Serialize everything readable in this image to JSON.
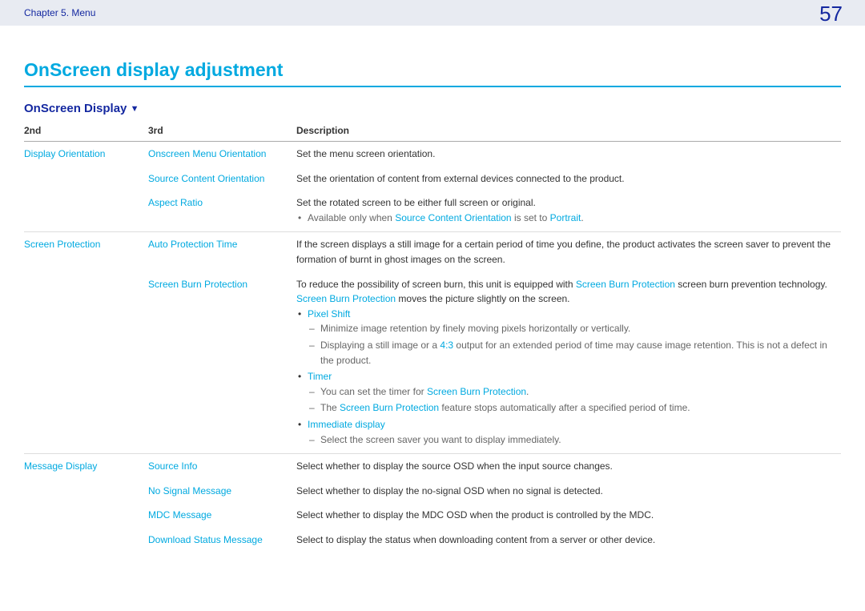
{
  "header": {
    "chapter": "Chapter 5. Menu",
    "page": "57"
  },
  "title": "OnScreen display adjustment",
  "section": "OnScreen Display",
  "columns": {
    "c2": "2nd",
    "c3": "3rd",
    "desc": "Description"
  },
  "rows": {
    "r1": {
      "second": "Display Orientation",
      "third": "Onscreen Menu Orientation",
      "desc": "Set the menu screen orientation."
    },
    "r2": {
      "third": "Source Content Orientation",
      "desc": "Set the orientation of content from external devices connected to the product."
    },
    "r3": {
      "third": "Aspect Ratio",
      "desc": "Set the rotated screen to be either full screen or original.",
      "note_pre": "Available only when ",
      "note_link1": "Source Content Orientation",
      "note_mid": " is set to ",
      "note_link2": "Portrait",
      "note_post": "."
    },
    "r4": {
      "second": "Screen Protection",
      "third": "Auto Protection Time",
      "desc": "If the screen displays a still image for a certain period of time you define, the product activates the screen saver to prevent the formation of burnt in ghost images on the screen."
    },
    "r5": {
      "third": "Screen Burn Protection",
      "p1_pre": "To reduce the possibility of screen burn, this unit is equipped with ",
      "p1_link": "Screen Burn Protection",
      "p1_post": " screen burn prevention technology.",
      "p2_link": "Screen Burn Protection",
      "p2_post": " moves the picture slightly on the screen.",
      "b1": "Pixel Shift",
      "b1d1": "Minimize image retention by finely moving pixels horizontally or vertically.",
      "b1d2_pre": "Displaying a still image or a ",
      "b1d2_link": "4:3",
      "b1d2_post": " output for an extended period of time may cause image retention. This is not a defect in the product.",
      "b2": "Timer",
      "b2d1_pre": "You can set the timer for ",
      "b2d1_link": "Screen Burn Protection",
      "b2d1_post": ".",
      "b2d2_pre": "The ",
      "b2d2_link": "Screen Burn Protection",
      "b2d2_post": " feature stops automatically after a specified period of time.",
      "b3": "Immediate display",
      "b3d1": "Select the screen saver you want to display immediately."
    },
    "r6": {
      "second": "Message Display",
      "third": "Source Info",
      "desc": "Select whether to display the source OSD when the input source changes."
    },
    "r7": {
      "third": "No Signal Message",
      "desc": "Select whether to display the no-signal OSD when no signal is detected."
    },
    "r8": {
      "third": "MDC Message",
      "desc": "Select whether to display the MDC OSD when the product is controlled by the MDC."
    },
    "r9": {
      "third": "Download Status Message",
      "desc": "Select to display the status when downloading content from a server or other device."
    }
  }
}
